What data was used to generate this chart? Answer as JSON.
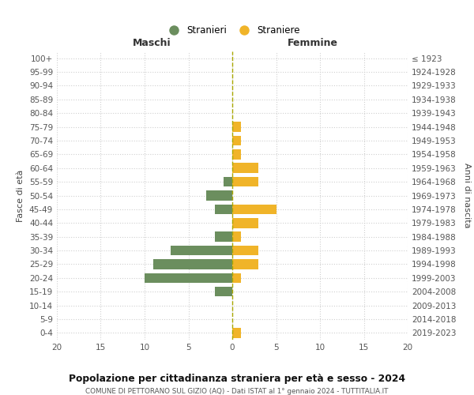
{
  "age_groups": [
    "0-4",
    "5-9",
    "10-14",
    "15-19",
    "20-24",
    "25-29",
    "30-34",
    "35-39",
    "40-44",
    "45-49",
    "50-54",
    "55-59",
    "60-64",
    "65-69",
    "70-74",
    "75-79",
    "80-84",
    "85-89",
    "90-94",
    "95-99",
    "100+"
  ],
  "birth_years": [
    "2019-2023",
    "2014-2018",
    "2009-2013",
    "2004-2008",
    "1999-2003",
    "1994-1998",
    "1989-1993",
    "1984-1988",
    "1979-1983",
    "1974-1978",
    "1969-1973",
    "1964-1968",
    "1959-1963",
    "1954-1958",
    "1949-1953",
    "1944-1948",
    "1939-1943",
    "1934-1938",
    "1929-1933",
    "1924-1928",
    "≤ 1923"
  ],
  "maschi": [
    0,
    0,
    0,
    2,
    10,
    9,
    7,
    2,
    0,
    2,
    3,
    1,
    0,
    0,
    0,
    0,
    0,
    0,
    0,
    0,
    0
  ],
  "femmine": [
    1,
    0,
    0,
    0,
    1,
    3,
    3,
    1,
    3,
    5,
    0,
    3,
    3,
    1,
    1,
    1,
    0,
    0,
    0,
    0,
    0
  ],
  "color_maschi": "#6b8e5e",
  "color_femmine": "#f0b429",
  "title": "Popolazione per cittadinanza straniera per età e sesso - 2024",
  "subtitle": "COMUNE DI PETTORANO SUL GIZIO (AQ) - Dati ISTAT al 1° gennaio 2024 - TUTTITALIA.IT",
  "xlabel_left": "Maschi",
  "xlabel_right": "Femmine",
  "ylabel_left": "Fasce di età",
  "ylabel_right": "Anni di nascita",
  "legend_maschi": "Stranieri",
  "legend_femmine": "Straniere",
  "xlim": 20,
  "bg_color": "#ffffff",
  "grid_color": "#d0d0d0",
  "axis_color": "#555555"
}
